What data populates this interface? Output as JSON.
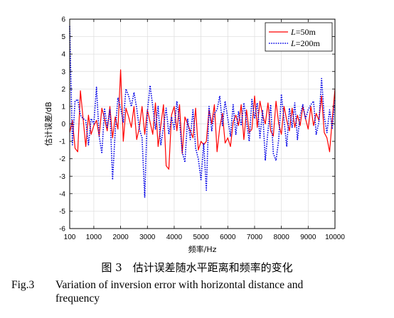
{
  "chart_data": {
    "type": "line",
    "xlabel": "频率/Hz",
    "ylabel": "估计误差/dB",
    "xlim": [
      100,
      10000
    ],
    "ylim": [
      -6,
      6
    ],
    "xticks": [
      100,
      1000,
      2000,
      3000,
      4000,
      5000,
      6000,
      7000,
      8000,
      9000,
      10000
    ],
    "yticks": [
      -6,
      -5,
      -4,
      -3,
      -2,
      -1,
      0,
      1,
      2,
      3,
      4,
      5,
      6
    ],
    "grid": true,
    "legend_position": "top-right",
    "series": [
      {
        "name": "L=50m",
        "legend_italic": "L",
        "legend_rest": "=50m",
        "color": "#ff0000",
        "style": "solid",
        "x": [
          100,
          200,
          300,
          400,
          500,
          600,
          700,
          800,
          900,
          1000,
          1100,
          1200,
          1300,
          1400,
          1500,
          1600,
          1700,
          1800,
          1900,
          2000,
          2100,
          2200,
          2300,
          2400,
          2500,
          2600,
          2700,
          2800,
          2900,
          3000,
          3100,
          3200,
          3300,
          3400,
          3500,
          3600,
          3700,
          3800,
          3900,
          4000,
          4100,
          4200,
          4300,
          4400,
          4500,
          4600,
          4700,
          4800,
          4900,
          5000,
          5100,
          5200,
          5300,
          5400,
          5500,
          5600,
          5700,
          5800,
          5900,
          6000,
          6100,
          6200,
          6300,
          6400,
          6500,
          6600,
          6700,
          6800,
          6900,
          7000,
          7100,
          7200,
          7300,
          7400,
          7500,
          7600,
          7700,
          7800,
          7900,
          8000,
          8100,
          8200,
          8300,
          8400,
          8500,
          8600,
          8700,
          8800,
          8900,
          9000,
          9100,
          9200,
          9300,
          9400,
          9500,
          9600,
          9700,
          9800,
          9900,
          10000
        ],
        "y": [
          -0.5,
          0.2,
          -1.4,
          -1.6,
          1.9,
          0.3,
          -1.3,
          0.5,
          -0.6,
          -0.1,
          0.2,
          -0.7,
          0.9,
          0.3,
          -0.4,
          1.0,
          -0.8,
          0.4,
          -0.3,
          3.1,
          -1.0,
          0.9,
          0.4,
          -0.2,
          1.0,
          -0.9,
          -0.2,
          1.0,
          -0.6,
          0.8,
          0.1,
          -0.6,
          1.2,
          -1.3,
          -0.1,
          1.1,
          -2.4,
          -2.6,
          0.5,
          1.0,
          -0.4,
          1.1,
          -1.7,
          0.4,
          0.0,
          -0.4,
          -0.8,
          0.9,
          -1.5,
          -1.0,
          -1.2,
          -1.0,
          0.8,
          0.0,
          1.1,
          -1.6,
          -0.2,
          0.6,
          -1.1,
          -0.8,
          -1.3,
          0.1,
          0.5,
          -0.1,
          1.1,
          -0.9,
          0.8,
          -0.5,
          -0.3,
          1.6,
          -0.2,
          1.3,
          0.5,
          0.0,
          1.2,
          -0.4,
          -0.7,
          1.3,
          0.0,
          -0.6,
          1.0,
          0.2,
          -0.4,
          0.9,
          -0.2,
          0.5,
          -0.1,
          1.0,
          0.3,
          -0.3,
          1.0,
          -0.1,
          0.6,
          0.2,
          1.6,
          -0.5,
          -0.8,
          -1.6,
          0.3,
          2.0
        ]
      },
      {
        "name": "L=200m",
        "legend_italic": "L",
        "legend_rest": "=200m",
        "color": "#0000e6",
        "style": "dotted",
        "x": [
          100,
          200,
          300,
          400,
          500,
          600,
          700,
          800,
          900,
          1000,
          1100,
          1200,
          1300,
          1400,
          1500,
          1600,
          1700,
          1800,
          1900,
          2000,
          2100,
          2200,
          2300,
          2400,
          2500,
          2600,
          2700,
          2800,
          2900,
          3000,
          3100,
          3200,
          3300,
          3400,
          3500,
          3600,
          3700,
          3800,
          3900,
          4000,
          4100,
          4200,
          4300,
          4400,
          4500,
          4600,
          4700,
          4800,
          4900,
          5000,
          5100,
          5200,
          5300,
          5400,
          5500,
          5600,
          5700,
          5800,
          5900,
          6000,
          6100,
          6200,
          6300,
          6400,
          6500,
          6600,
          6700,
          6800,
          6900,
          7000,
          7100,
          7200,
          7300,
          7400,
          7500,
          7600,
          7700,
          7800,
          7900,
          8000,
          8100,
          8200,
          8300,
          8400,
          8500,
          8600,
          8700,
          8800,
          8900,
          9000,
          9100,
          9200,
          9300,
          9400,
          9500,
          9600,
          9700,
          9800,
          9900,
          10000
        ],
        "y": [
          5.6,
          -1.2,
          1.3,
          1.4,
          0.5,
          0.3,
          0.2,
          -1.2,
          0.3,
          0.0,
          2.1,
          -0.7,
          -1.7,
          0.9,
          -0.2,
          0.8,
          -3.2,
          -0.4,
          1.5,
          0.9,
          0.1,
          2.0,
          1.6,
          1.0,
          1.8,
          0.9,
          -0.3,
          -0.8,
          -4.2,
          0.7,
          2.2,
          1.0,
          -0.3,
          1.0,
          -1.2,
          -0.2,
          0.9,
          -0.6,
          0.4,
          -0.3,
          1.3,
          0.1,
          -1.6,
          -2.2,
          0.3,
          -0.9,
          0.8,
          -1.4,
          -2.0,
          -3.2,
          -1.1,
          -3.8,
          1.0,
          -0.4,
          0.6,
          0.8,
          1.6,
          -0.1,
          1.3,
          0.3,
          -0.7,
          1.1,
          -0.6,
          0.7,
          -0.1,
          1.2,
          0.1,
          -1.0,
          1.4,
          0.3,
          1.2,
          -0.8,
          0.8,
          -2.1,
          -0.4,
          1.1,
          -1.7,
          -2.1,
          -0.9,
          1.7,
          0.2,
          -1.3,
          0.9,
          -0.2,
          1.2,
          -0.9,
          0.5,
          1.1,
          0.3,
          0.8,
          1.1,
          1.3,
          -0.6,
          0.1,
          2.6,
          0.4,
          -0.5,
          0.8,
          -0.3,
          1.4
        ]
      }
    ]
  },
  "caption": {
    "cn": "图 3　估计误差随水平距离和频率的变化",
    "en_label": "Fig.3",
    "en_line1": "Variation of inversion error with horizontal distance and",
    "en_line2": "frequency"
  }
}
